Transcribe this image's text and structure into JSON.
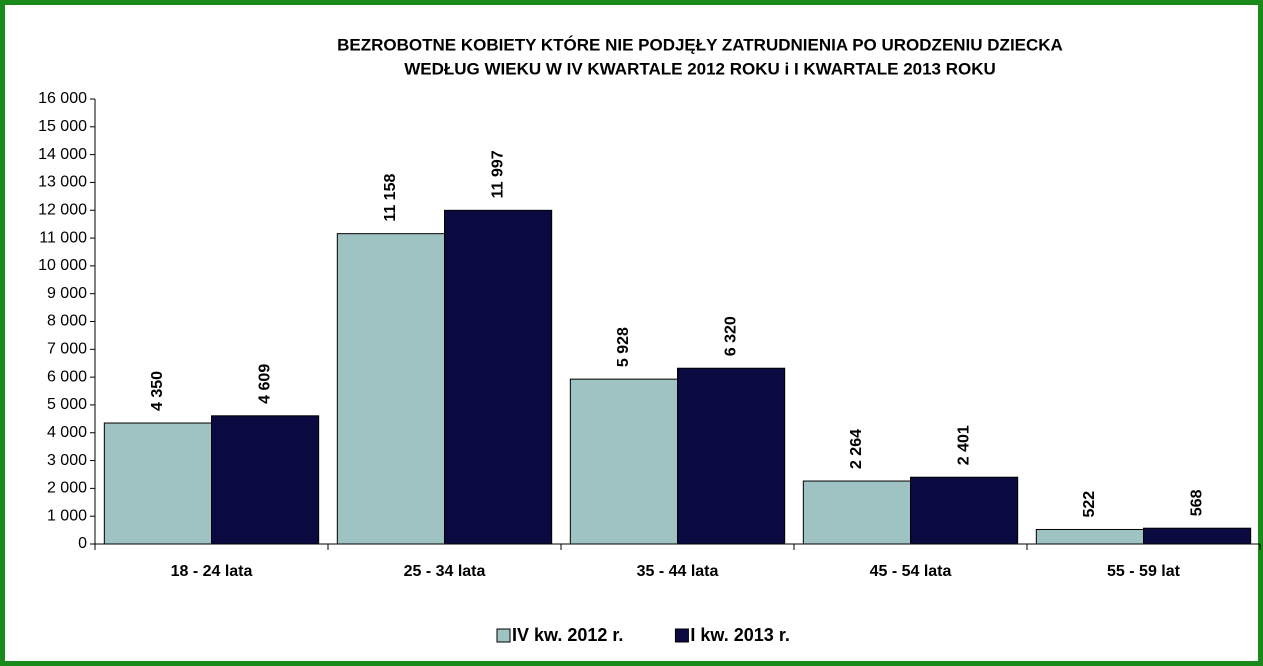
{
  "chart_data": {
    "type": "bar",
    "title": [
      "BEZROBOTNE KOBIETY KTÓRE NIE PODJĘŁY ZATRUDNIENIA  PO URODZENIU DZIECKA",
      "WEDŁUG WIEKU W IV KWARTALE 2012 ROKU i I KWARTALE 2013 ROKU"
    ],
    "categories": [
      "18 - 24 lata",
      "25 - 34 lata",
      "35 - 44 lata",
      "45 - 54 lata",
      "55 - 59 lat"
    ],
    "series": [
      {
        "name": "IV kw. 2012 r.",
        "color": "#9fc3c3",
        "values": [
          4350,
          11158,
          5928,
          2264,
          522
        ],
        "value_labels": [
          "4 350",
          "11 158",
          "5 928",
          "2 264",
          "522"
        ]
      },
      {
        "name": "I kw. 2013 r.",
        "color": "#0a0a40",
        "values": [
          4609,
          11997,
          6320,
          2401,
          568
        ],
        "value_labels": [
          "4 609",
          "11 997",
          "6 320",
          "2 401",
          "568"
        ]
      }
    ],
    "ylim": [
      0,
      16000
    ],
    "yticks": [
      0,
      {
        "value": 1000,
        "label": "1 000"
      },
      {
        "value": 2000,
        "label": "2 000"
      },
      {
        "value": 3000,
        "label": "3 000"
      },
      {
        "value": 4000,
        "label": "4 000"
      },
      {
        "value": 5000,
        "label": "5 000"
      },
      {
        "value": 6000,
        "label": "6 000"
      },
      {
        "value": 7000,
        "label": "7 000"
      },
      {
        "value": 8000,
        "label": "8 000"
      },
      {
        "value": 9000,
        "label": "9 000"
      },
      {
        "value": 10000,
        "label": "10 000"
      },
      {
        "value": 11000,
        "label": "11 000"
      },
      {
        "value": 12000,
        "label": "12 000"
      },
      {
        "value": 13000,
        "label": "13 000"
      },
      {
        "value": 14000,
        "label": "14 000"
      },
      {
        "value": 15000,
        "label": "15 000"
      },
      {
        "value": 16000,
        "label": "16 000"
      }
    ],
    "grid": false,
    "legend": "bottom"
  }
}
